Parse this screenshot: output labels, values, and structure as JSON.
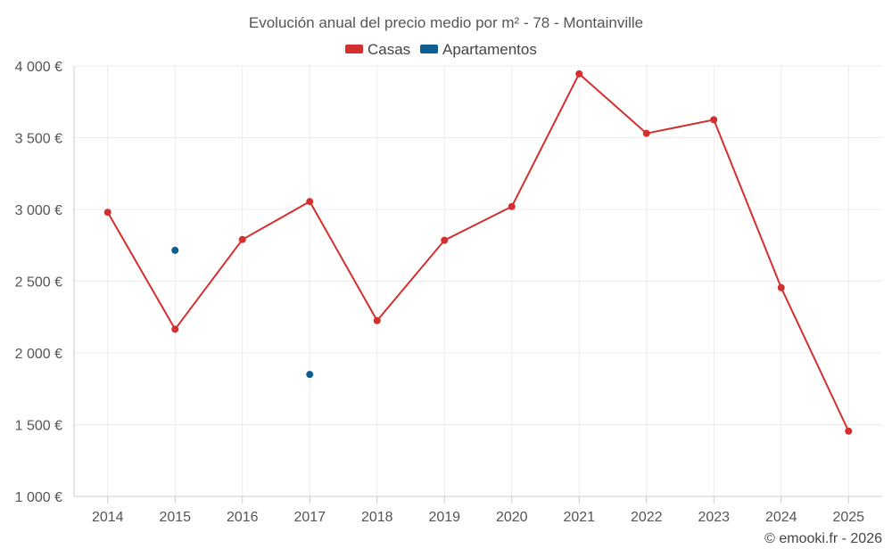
{
  "chart_data": {
    "type": "line",
    "title": "Evolución anual del precio medio por m² - 78 - Montainville",
    "categories": [
      "2014",
      "2015",
      "2016",
      "2017",
      "2018",
      "2019",
      "2020",
      "2021",
      "2022",
      "2023",
      "2024",
      "2025"
    ],
    "y_ticks": [
      "1 000 €",
      "1 500 €",
      "2 000 €",
      "2 500 €",
      "3 000 €",
      "3 500 €",
      "4 000 €"
    ],
    "y_tick_values": [
      1000,
      1500,
      2000,
      2500,
      3000,
      3500,
      4000
    ],
    "ylim": [
      1000,
      4000
    ],
    "grid": true,
    "legend_position": "top-center",
    "series": [
      {
        "name": "Casas",
        "color": "#d32f2f",
        "mode": "line",
        "values": [
          2980,
          2165,
          2790,
          3055,
          2225,
          2785,
          3020,
          3945,
          3530,
          3625,
          2455,
          1455
        ]
      },
      {
        "name": "Apartamentos",
        "color": "#0d5e91",
        "mode": "points",
        "values": [
          null,
          2715,
          null,
          1850,
          null,
          null,
          null,
          null,
          null,
          null,
          null,
          null
        ]
      }
    ]
  },
  "credit": "© emooki.fr - 2026"
}
